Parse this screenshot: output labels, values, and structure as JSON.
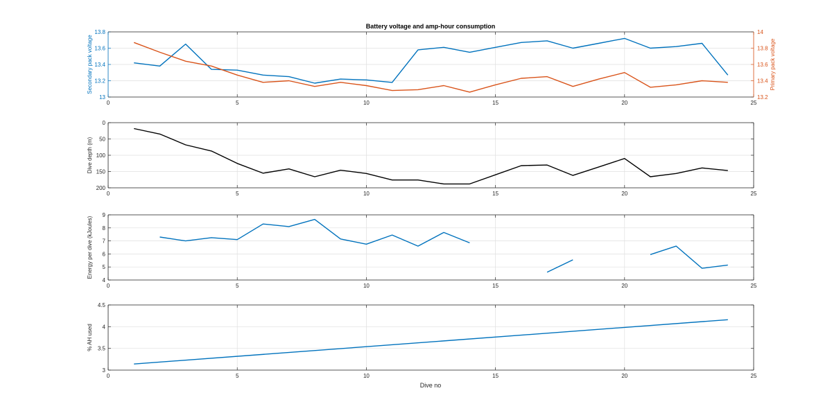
{
  "figure": {
    "title": "Battery voltage and amp-hour consumption",
    "xlabel": "Dive no"
  },
  "colors": {
    "blue": "#0072BD",
    "orange": "#D95319",
    "black": "#000000",
    "axis": "#262626",
    "grid": "#dfdfdf"
  },
  "chart_data": [
    {
      "type": "line",
      "title": "Battery voltage and amp-hour consumption",
      "xlabel": "",
      "xlim": [
        0,
        25
      ],
      "xticks": [
        0,
        5,
        10,
        15,
        20,
        25
      ],
      "ylabel": "Secondary pack voltage",
      "ylim": [
        13,
        13.8
      ],
      "yticks": [
        "13",
        "13.2",
        "13.4",
        "13.6",
        "13.8"
      ],
      "ylabel_right": "Primary pack voltage",
      "ylim_right": [
        13.2,
        14
      ],
      "yticks_right": [
        "13.2",
        "13.4",
        "13.6",
        "13.8",
        "14"
      ],
      "grid": true,
      "series": [
        {
          "axis": "left",
          "color": "#0072BD",
          "x": [
            1,
            2,
            3,
            4,
            5,
            6,
            7,
            8,
            9,
            10,
            11,
            12,
            13,
            14,
            15,
            16,
            17,
            18,
            19,
            20,
            21,
            22,
            23,
            24
          ],
          "y": [
            13.42,
            13.38,
            13.65,
            13.34,
            13.33,
            13.27,
            13.25,
            13.17,
            13.22,
            13.21,
            13.18,
            13.58,
            13.61,
            13.55,
            13.61,
            13.67,
            13.69,
            13.6,
            13.66,
            13.72,
            13.6,
            13.62,
            13.66,
            13.27
          ]
        },
        {
          "axis": "right",
          "color": "#D95319",
          "x": [
            1,
            2,
            3,
            4,
            5,
            6,
            7,
            8,
            9,
            10,
            11,
            12,
            13,
            14,
            15,
            16,
            17,
            18,
            19,
            20,
            21,
            22,
            23,
            24
          ],
          "y": [
            13.87,
            13.75,
            13.64,
            13.58,
            13.47,
            13.38,
            13.4,
            13.33,
            13.38,
            13.34,
            13.28,
            13.29,
            13.34,
            13.26,
            13.35,
            13.43,
            13.45,
            13.33,
            13.42,
            13.5,
            13.32,
            13.35,
            13.4,
            13.38
          ]
        }
      ]
    },
    {
      "type": "line",
      "xlabel": "",
      "xlim": [
        0,
        25
      ],
      "xticks": [
        0,
        5,
        10,
        15,
        20,
        25
      ],
      "ylabel": "Dive depth (m)",
      "ylim": [
        0,
        200
      ],
      "yreverse": true,
      "yticks": [
        "0",
        "50",
        "100",
        "150",
        "200"
      ],
      "grid": true,
      "series": [
        {
          "color": "#000000",
          "x": [
            1,
            2,
            3,
            4,
            5,
            6,
            7,
            8,
            9,
            10,
            11,
            12,
            13,
            14,
            15,
            16,
            17,
            18,
            19,
            20,
            21,
            22,
            23,
            24
          ],
          "y": [
            18,
            35,
            68,
            87,
            125,
            155,
            142,
            166,
            146,
            156,
            176,
            176,
            188,
            188,
            160,
            132,
            130,
            162,
            136,
            110,
            166,
            156,
            139,
            147
          ]
        }
      ]
    },
    {
      "type": "line",
      "xlabel": "",
      "xlim": [
        0,
        25
      ],
      "xticks": [
        0,
        5,
        10,
        15,
        20,
        25
      ],
      "ylabel": "Energy per dive (kJoules)",
      "ylim": [
        4,
        9
      ],
      "yticks": [
        "4",
        "5",
        "6",
        "7",
        "8",
        "9"
      ],
      "grid": true,
      "series": [
        {
          "color": "#0072BD",
          "x": [
            1,
            2,
            3,
            4,
            5,
            6,
            7,
            8,
            9,
            10,
            11,
            12,
            13,
            14,
            15,
            16,
            17,
            18,
            19,
            20,
            21,
            22,
            23,
            24
          ],
          "y": [
            null,
            7.3,
            7.0,
            7.25,
            7.1,
            8.3,
            8.1,
            8.65,
            7.15,
            6.75,
            7.45,
            6.6,
            7.65,
            6.85,
            null,
            null,
            4.6,
            5.55,
            null,
            null,
            5.95,
            6.6,
            4.9,
            5.15
          ]
        }
      ]
    },
    {
      "type": "line",
      "xlabel": "Dive no",
      "xlim": [
        0,
        25
      ],
      "xticks": [
        0,
        5,
        10,
        15,
        20,
        25
      ],
      "ylabel": "% AH used",
      "ylim": [
        3,
        4.5
      ],
      "yticks": [
        "3",
        "3.5",
        "4",
        "4.5"
      ],
      "grid": true,
      "series": [
        {
          "color": "#0072BD",
          "x": [
            1,
            24
          ],
          "y": [
            3.14,
            4.16
          ]
        }
      ]
    }
  ]
}
